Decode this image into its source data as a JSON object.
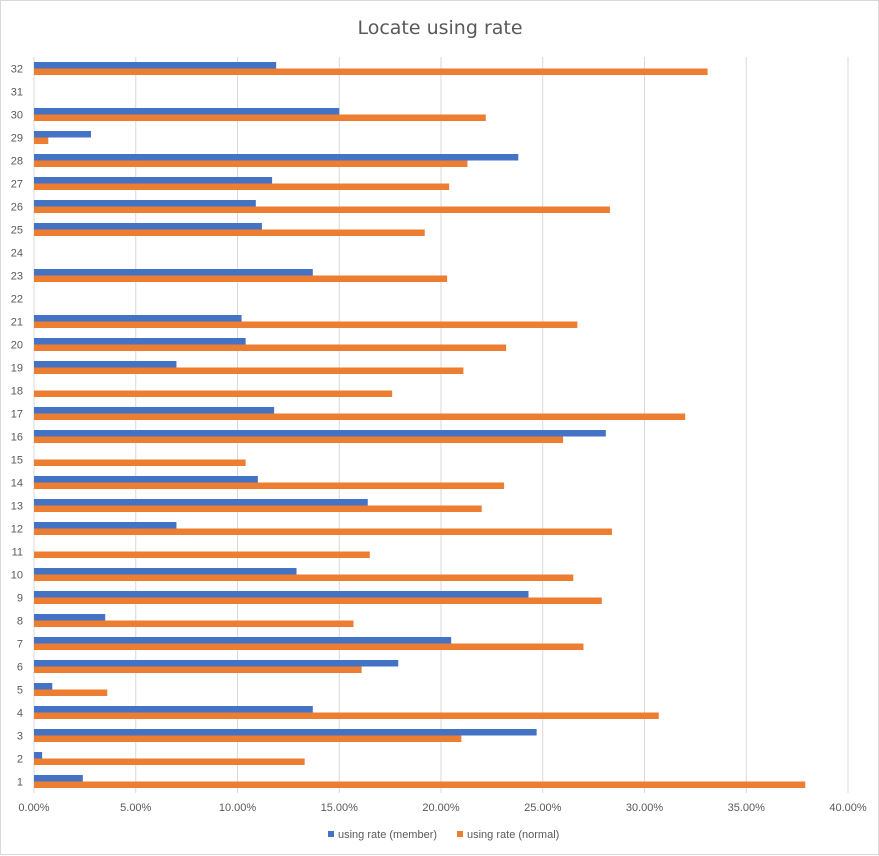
{
  "chart_data": {
    "type": "bar",
    "orientation": "horizontal",
    "title": "Locate using rate",
    "xlabel": "",
    "ylabel": "",
    "xlim": [
      0,
      0.4
    ],
    "x_ticks": [
      "0.00%",
      "5.00%",
      "10.00%",
      "15.00%",
      "20.00%",
      "25.00%",
      "30.00%",
      "35.00%",
      "40.00%"
    ],
    "grid": "vertical",
    "legend_position": "bottom",
    "categories": [
      "1",
      "2",
      "3",
      "4",
      "5",
      "6",
      "7",
      "8",
      "9",
      "10",
      "11",
      "12",
      "13",
      "14",
      "15",
      "16",
      "17",
      "18",
      "19",
      "20",
      "21",
      "22",
      "23",
      "24",
      "25",
      "26",
      "27",
      "28",
      "29",
      "30",
      "31",
      "32"
    ],
    "series": [
      {
        "name": "using rate (member)",
        "color": "#4472c4",
        "values": [
          0.024,
          0.004,
          0.247,
          0.137,
          0.009,
          0.179,
          0.205,
          0.035,
          0.243,
          0.129,
          0,
          0.07,
          0.164,
          0.11,
          0,
          0.281,
          0.118,
          0,
          0.07,
          0.104,
          0.102,
          0,
          0.137,
          0,
          0.112,
          0.109,
          0.117,
          0.238,
          0.028,
          0.15,
          0,
          0.119
        ]
      },
      {
        "name": "using rate (normal)",
        "color": "#ed7d31",
        "values": [
          0.379,
          0.133,
          0.21,
          0.307,
          0.036,
          0.161,
          0.27,
          0.157,
          0.279,
          0.265,
          0.165,
          0.284,
          0.22,
          0.231,
          0.104,
          0.26,
          0.32,
          0.176,
          0.211,
          0.232,
          0.267,
          0,
          0.203,
          0,
          0.192,
          0.283,
          0.204,
          0.213,
          0.007,
          0.222,
          0,
          0.331
        ]
      }
    ]
  }
}
